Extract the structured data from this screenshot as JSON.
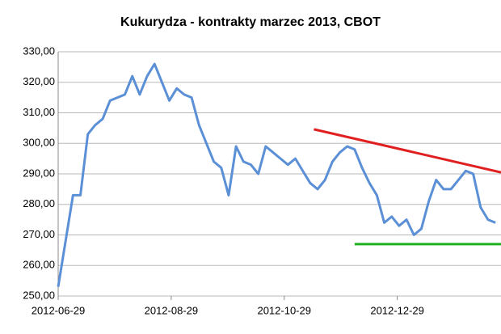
{
  "chart_data": {
    "type": "line",
    "title": "Kukurydza - kontrakty marzec 2013, CBOT",
    "x": [
      "2012-06-29",
      "2012-07-03",
      "2012-07-07",
      "2012-07-11",
      "2012-07-15",
      "2012-07-19",
      "2012-07-23",
      "2012-07-27",
      "2012-07-31",
      "2012-08-04",
      "2012-08-08",
      "2012-08-12",
      "2012-08-16",
      "2012-08-20",
      "2012-08-24",
      "2012-08-28",
      "2012-09-01",
      "2012-09-05",
      "2012-09-09",
      "2012-09-13",
      "2012-09-17",
      "2012-09-21",
      "2012-09-25",
      "2012-09-29",
      "2012-10-03",
      "2012-10-07",
      "2012-10-11",
      "2012-10-15",
      "2012-10-19",
      "2012-10-23",
      "2012-10-27",
      "2012-10-31",
      "2012-11-04",
      "2012-11-08",
      "2012-11-12",
      "2012-11-16",
      "2012-11-20",
      "2012-11-24",
      "2012-11-28",
      "2012-12-02",
      "2012-12-06",
      "2012-12-10",
      "2012-12-14",
      "2012-12-18",
      "2012-12-22",
      "2012-12-26",
      "2012-12-30",
      "2013-01-03",
      "2013-01-07",
      "2013-01-11",
      "2013-01-15",
      "2013-01-19",
      "2013-01-23",
      "2013-01-27",
      "2013-01-31",
      "2013-02-04",
      "2013-02-08",
      "2013-02-12",
      "2013-02-16",
      "2013-02-20"
    ],
    "series": [
      {
        "color": "#5b8fd6",
        "values": [
          253,
          268,
          283,
          283,
          303,
          306,
          308,
          314,
          315,
          316,
          322,
          316,
          322,
          326,
          320,
          314,
          318,
          316,
          315,
          306,
          300,
          294,
          292,
          283,
          299,
          294,
          293,
          290,
          299,
          297,
          295,
          293,
          295,
          291,
          287,
          285,
          288,
          294,
          297,
          299,
          298,
          292,
          287,
          283,
          274,
          276,
          273,
          275,
          270,
          272,
          281,
          288,
          285,
          285,
          288,
          291,
          290,
          279,
          275,
          274
        ]
      }
    ],
    "trend_lines": [
      {
        "color": "#e02020",
        "x": [
          "2012-11-14",
          "2013-02-23"
        ],
        "values": [
          304.6,
          290.5
        ]
      },
      {
        "color": "#20b020",
        "x": [
          "2012-12-06",
          "2013-02-23"
        ],
        "values": [
          267,
          267
        ]
      }
    ],
    "xlim": [
      "2012-06-29",
      "2013-02-23"
    ],
    "xticks": [
      "2012-06-29",
      "2012-08-29",
      "2012-10-29",
      "2012-12-29"
    ],
    "ylim": [
      250,
      330
    ],
    "yticks": [
      {
        "value": 250,
        "label": "250,00"
      },
      {
        "value": 260,
        "label": "260,00"
      },
      {
        "value": 270,
        "label": "270,00"
      },
      {
        "value": 280,
        "label": "280,00"
      },
      {
        "value": 290,
        "label": "290,00"
      },
      {
        "value": 300,
        "label": "300,00"
      },
      {
        "value": 310,
        "label": "310,00"
      },
      {
        "value": 320,
        "label": "320,00"
      },
      {
        "value": 330,
        "label": "330,00"
      }
    ],
    "grid": true
  }
}
